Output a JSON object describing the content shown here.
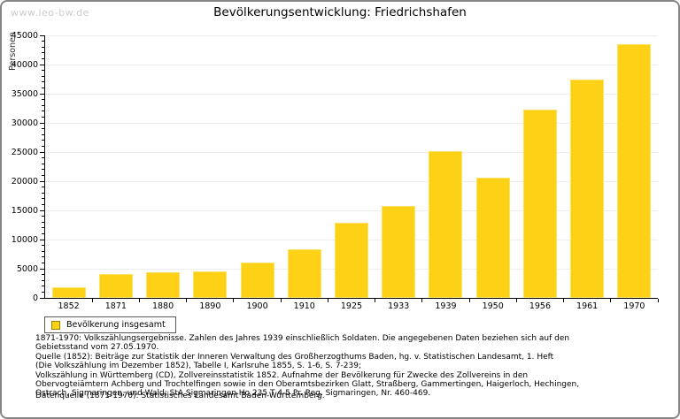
{
  "watermark": "www.leo-bw.de",
  "header": {
    "title": "Bevölkerungsentwicklung: Friedrichshafen"
  },
  "chart_data": {
    "type": "bar",
    "title": "Bevölkerungsentwicklung: Friedrichshafen",
    "categories": [
      "1852",
      "1871",
      "1880",
      "1890",
      "1900",
      "1910",
      "1925",
      "1933",
      "1939",
      "1950",
      "1956",
      "1961",
      "1970"
    ],
    "values": [
      1800,
      4150,
      4350,
      4550,
      6100,
      8350,
      12900,
      15800,
      25150,
      20550,
      32300,
      37400,
      43500
    ],
    "series_name": "Bevölkerung insgesamt",
    "xlabel": "",
    "ylabel": "Personen",
    "ylim": [
      0,
      45000
    ],
    "ytick_step": 5000,
    "yminor_step": 1000,
    "grid": true,
    "legend_position": "bottom-left",
    "bar_color": "#FCD116",
    "grid_color": "#ededed",
    "axis_color": "#000000"
  },
  "legend": {
    "label": "Bevölkerung insgesamt"
  },
  "footnotes": {
    "lines": [
      "1871-1970: Volkszählungsergebnisse. Zahlen des Jahres 1939 einschließlich Soldaten. Die angegebenen Daten beziehen sich auf den",
      "Gebietsstand vom 27.05.1970.",
      "Quelle (1852): Beiträge zur Statistik der Inneren Verwaltung des Großherzogthums Baden, hg. v. Statistischen Landesamt, 1. Heft",
      "(Die Volkszählung im Dezember 1852), Tabelle I, Karlsruhe 1855, S. 1-6, S. 7-239;",
      "Volkszählung in Württemberg (CD), Zollvereinsstatistik 1852. Aufnahme der Bevölkerung für Zwecke des Zollvereins in den",
      "Obervogteiämtern Achberg und Trochtelfingen sowie in den Oberamtsbezirken Glatt, Straßberg, Gammertingen, Haigerloch, Hechingen,",
      "Ostrach, Sigmaringen, und Wald; StA Sigmaringen Ho 235 T 4-5 Pr. Reg. Sigmaringen, Nr. 460-469."
    ],
    "datasource": "Datenquelle (1871-1970): Statistisches Landesamt Baden-Württemberg."
  }
}
